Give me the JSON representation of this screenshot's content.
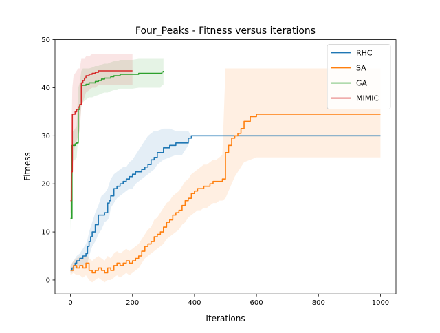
{
  "chart_data": {
    "type": "line",
    "title": "Four_Peaks - Fitness versus iterations",
    "xlabel": "Iterations",
    "ylabel": "Fitness",
    "xlim": [
      -50,
      1050
    ],
    "ylim": [
      -2.9,
      50
    ],
    "xticks": [
      0,
      200,
      400,
      600,
      800,
      1000
    ],
    "yticks": [
      0,
      10,
      20,
      30,
      40,
      50
    ],
    "grid": false,
    "legend_position": "top-right",
    "series": [
      {
        "name": "RHC",
        "color": "#1f77b4",
        "x": [
          0,
          5,
          10,
          15,
          20,
          30,
          40,
          50,
          55,
          60,
          65,
          70,
          80,
          90,
          95,
          100,
          110,
          120,
          125,
          130,
          140,
          150,
          160,
          170,
          180,
          190,
          200,
          210,
          220,
          230,
          240,
          250,
          260,
          270,
          280,
          300,
          320,
          340,
          360,
          380,
          390,
          400,
          1000
        ],
        "y": [
          2.0,
          2.5,
          3.0,
          3.5,
          4.0,
          4.5,
          5.0,
          5.5,
          7.0,
          8.0,
          9.0,
          10.0,
          11.5,
          13.5,
          13.5,
          13.5,
          14.0,
          16.0,
          16.5,
          17.5,
          19.0,
          19.5,
          20.0,
          20.5,
          21.0,
          21.5,
          22.0,
          22.5,
          22.5,
          23.0,
          23.5,
          24.0,
          25.0,
          25.5,
          26.5,
          27.5,
          28.0,
          28.5,
          28.5,
          29.5,
          30.0,
          30.0,
          30.0
        ],
        "lower": [
          1.5,
          1.5,
          2.0,
          2.5,
          2.5,
          3.0,
          3.0,
          3.5,
          3.5,
          5.0,
          6.0,
          7.0,
          8.0,
          9.5,
          10.0,
          10.5,
          12.0,
          12.5,
          13.0,
          15.0,
          16.0,
          17.0,
          17.5,
          18.0,
          18.5,
          19.0,
          19.0,
          20.0,
          20.5,
          21.0,
          21.5,
          22.0,
          22.5,
          23.0,
          24.0,
          25.0,
          25.5,
          26.0,
          26.0,
          28.0,
          30.0,
          30.0,
          30.0
        ],
        "upper": [
          3.0,
          3.5,
          4.0,
          4.5,
          5.0,
          5.5,
          6.5,
          7.5,
          8.5,
          10.0,
          11.0,
          12.0,
          14.0,
          15.5,
          16.5,
          17.5,
          18.0,
          19.0,
          20.0,
          21.0,
          22.0,
          22.5,
          23.0,
          23.5,
          23.5,
          24.5,
          25.0,
          26.0,
          27.0,
          28.0,
          29.0,
          30.0,
          30.5,
          31.0,
          31.0,
          31.5,
          31.5,
          31.0,
          31.0,
          31.0,
          30.0,
          30.0,
          30.0
        ]
      },
      {
        "name": "SA",
        "color": "#ff7f0e",
        "x": [
          0,
          10,
          20,
          30,
          40,
          50,
          60,
          70,
          80,
          90,
          100,
          110,
          120,
          130,
          140,
          150,
          160,
          170,
          180,
          190,
          200,
          210,
          220,
          230,
          240,
          250,
          260,
          270,
          280,
          290,
          300,
          310,
          320,
          330,
          340,
          350,
          360,
          370,
          380,
          390,
          400,
          410,
          420,
          430,
          440,
          450,
          460,
          470,
          480,
          490,
          500,
          510,
          520,
          530,
          540,
          550,
          560,
          580,
          600,
          650,
          1000
        ],
        "y": [
          2.0,
          3.0,
          2.5,
          3.0,
          2.5,
          3.5,
          2.0,
          1.5,
          2.0,
          2.5,
          2.0,
          1.5,
          2.5,
          2.0,
          3.0,
          3.5,
          3.0,
          3.5,
          4.0,
          3.5,
          4.0,
          4.5,
          5.0,
          6.0,
          7.0,
          7.5,
          8.0,
          9.0,
          9.5,
          10.0,
          11.0,
          12.0,
          12.5,
          13.5,
          14.0,
          14.5,
          15.5,
          16.5,
          17.0,
          18.0,
          18.5,
          19.0,
          19.0,
          19.5,
          19.5,
          20.0,
          20.5,
          20.5,
          20.5,
          21.0,
          26.5,
          28.0,
          29.5,
          30.0,
          30.5,
          31.5,
          33.0,
          34.0,
          34.5,
          34.5,
          34.5
        ],
        "lower": [
          1.0,
          1.5,
          1.0,
          1.0,
          0.5,
          1.0,
          0.0,
          -0.5,
          0.0,
          0.5,
          0.0,
          -0.5,
          0.0,
          0.0,
          0.5,
          1.0,
          0.5,
          1.0,
          1.5,
          1.0,
          1.5,
          2.0,
          2.5,
          3.5,
          4.5,
          5.0,
          5.5,
          6.0,
          6.5,
          7.0,
          7.5,
          8.5,
          9.0,
          9.5,
          10.0,
          10.5,
          11.5,
          12.0,
          13.0,
          13.5,
          14.0,
          14.5,
          14.5,
          15.0,
          15.0,
          15.5,
          16.0,
          16.0,
          16.5,
          16.5,
          17.0,
          18.5,
          20.0,
          21.5,
          22.5,
          23.5,
          24.5,
          25.0,
          25.5,
          25.5,
          25.5
        ],
        "upper": [
          3.0,
          4.0,
          4.5,
          5.0,
          4.5,
          5.5,
          4.5,
          4.0,
          4.5,
          5.0,
          4.5,
          4.0,
          5.0,
          4.5,
          5.5,
          6.0,
          5.5,
          6.0,
          6.5,
          6.0,
          6.5,
          7.0,
          7.5,
          8.5,
          9.5,
          10.5,
          11.0,
          12.5,
          13.0,
          14.0,
          15.0,
          16.0,
          16.5,
          17.5,
          18.0,
          18.5,
          19.5,
          20.5,
          21.0,
          22.0,
          22.5,
          23.0,
          23.5,
          24.0,
          24.0,
          24.5,
          25.0,
          25.0,
          25.5,
          26.0,
          44.0,
          44.0,
          44.0,
          44.0,
          44.0,
          44.0,
          44.0,
          44.0,
          44.0,
          44.0,
          44.0
        ]
      },
      {
        "name": "GA",
        "color": "#2ca02c",
        "x": [
          0,
          5,
          10,
          15,
          20,
          25,
          30,
          35,
          40,
          50,
          60,
          70,
          80,
          90,
          100,
          110,
          120,
          130,
          140,
          150,
          160,
          180,
          200,
          220,
          240,
          260,
          280,
          290,
          295,
          300
        ],
        "y": [
          12.8,
          28.0,
          28.0,
          28.3,
          28.5,
          35.5,
          36.5,
          40.5,
          40.5,
          40.7,
          41.0,
          41.0,
          41.3,
          41.5,
          41.8,
          42.0,
          42.0,
          42.3,
          42.5,
          42.5,
          42.8,
          42.8,
          42.8,
          43.0,
          43.0,
          43.0,
          43.0,
          43.0,
          43.3,
          43.5
        ],
        "lower": [
          10.0,
          24.0,
          25.0,
          25.0,
          25.5,
          30.0,
          32.0,
          36.5,
          37.0,
          37.5,
          38.0,
          38.0,
          38.3,
          38.5,
          38.8,
          39.0,
          39.0,
          39.3,
          39.5,
          39.5,
          39.8,
          39.8,
          39.8,
          40.0,
          40.0,
          40.0,
          40.0,
          40.0,
          40.5,
          40.5
        ],
        "upper": [
          16.0,
          31.0,
          31.0,
          31.5,
          32.0,
          40.0,
          41.0,
          43.5,
          44.0,
          44.0,
          44.0,
          44.2,
          44.5,
          44.5,
          44.8,
          45.0,
          45.0,
          45.3,
          45.5,
          45.5,
          45.8,
          45.8,
          45.8,
          46.0,
          46.0,
          46.0,
          46.0,
          46.0,
          46.0,
          46.0
        ]
      },
      {
        "name": "MIMIC",
        "color": "#d62728",
        "x": [
          0,
          3,
          6,
          10,
          15,
          20,
          25,
          30,
          35,
          40,
          45,
          50,
          60,
          70,
          80,
          90,
          100,
          120,
          140,
          160,
          180,
          200
        ],
        "y": [
          16.5,
          22.5,
          34.5,
          34.5,
          35.0,
          35.5,
          36.0,
          36.5,
          41.0,
          41.5,
          42.0,
          42.5,
          42.8,
          43.0,
          43.2,
          43.5,
          43.5,
          43.5,
          43.5,
          43.5,
          43.5,
          43.5
        ],
        "lower": [
          14.0,
          14.0,
          20.0,
          26.0,
          28.0,
          29.0,
          30.0,
          31.0,
          36.0,
          37.0,
          38.0,
          39.0,
          39.5,
          40.0,
          40.0,
          40.5,
          40.5,
          40.5,
          40.5,
          40.5,
          40.5,
          40.5
        ],
        "upper": [
          19.5,
          30.0,
          40.0,
          42.5,
          43.0,
          43.5,
          44.0,
          44.0,
          46.0,
          46.0,
          46.0,
          46.5,
          46.5,
          47.0,
          47.0,
          47.0,
          47.0,
          47.0,
          47.0,
          47.0,
          47.0,
          47.0
        ]
      }
    ]
  }
}
